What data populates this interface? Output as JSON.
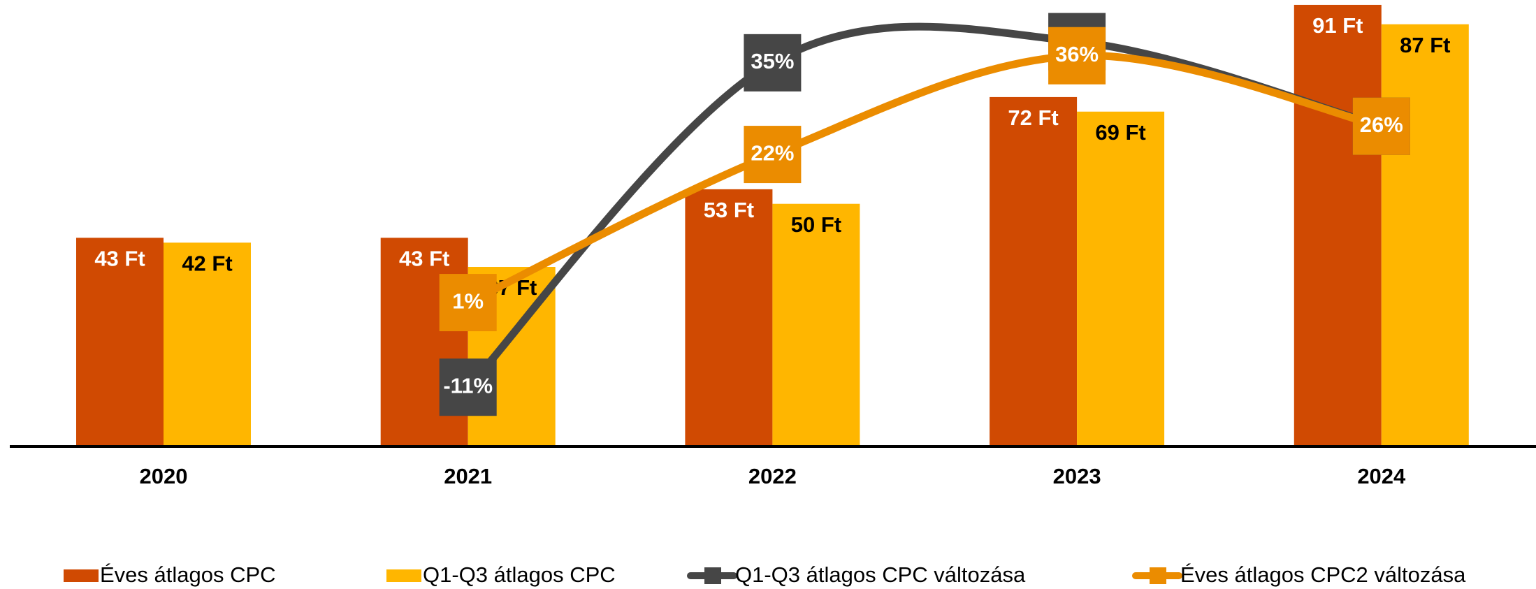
{
  "chart_data": {
    "type": "bar",
    "categories": [
      "2020",
      "2021",
      "2022",
      "2023",
      "2024"
    ],
    "ylim": [
      0,
      92
    ],
    "y2lim": [
      -19.4,
      43.9
    ],
    "series": [
      {
        "name": "Éves átlagos CPC",
        "color": "#d04a02",
        "values": [
          43,
          43,
          53,
          72,
          91
        ],
        "value_labels": [
          "43 Ft",
          "43 Ft",
          "53 Ft",
          "72 Ft",
          "91 Ft"
        ]
      },
      {
        "name": "Q1-Q3 átlagos CPC",
        "color": "#ffb600",
        "values": [
          42,
          37,
          50,
          69,
          87
        ],
        "value_labels": [
          "42 Ft",
          "37 Ft",
          "50 Ft",
          "69 Ft",
          "87 Ft"
        ]
      },
      {
        "name": "Q1-Q3 átlagos CPC változása",
        "type": "line",
        "axis": "y2",
        "color": "#464646",
        "values": [
          null,
          -11,
          35,
          38,
          26
        ],
        "value_labels": [
          null,
          "-11%",
          "35%",
          "38%",
          "26%"
        ]
      },
      {
        "name": "Éves átlagos CPC2 változása",
        "type": "line",
        "axis": "y2",
        "color": "#eb8c00",
        "values": [
          null,
          1,
          22,
          36,
          26
        ],
        "value_labels": [
          null,
          "1%",
          "22%",
          "36%",
          "26%"
        ]
      }
    ]
  }
}
